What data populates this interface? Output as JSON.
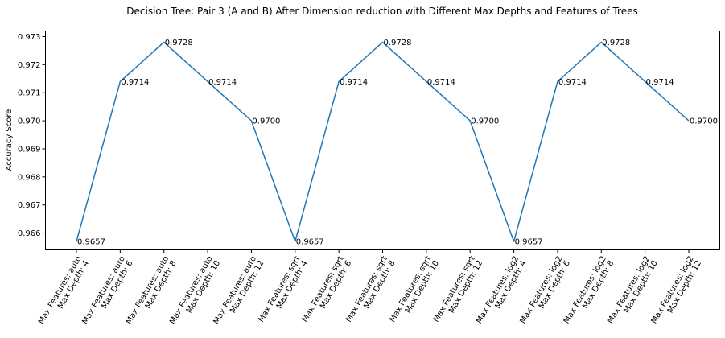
{
  "chart_data": {
    "type": "line",
    "title": "Decision Tree: Pair 3 (A and B) After Dimension reduction with Different Max Depths and Features of Trees",
    "xlabel": "",
    "ylabel": "Accuracy Score",
    "ylim": [
      0.9654,
      0.9732
    ],
    "yticks": [
      "0.966",
      "0.967",
      "0.968",
      "0.969",
      "0.970",
      "0.971",
      "0.972",
      "0.973"
    ],
    "grid": false,
    "line_color": "#1f77b4",
    "categories": [
      [
        "Max Features: auto",
        "Max Depth: 4"
      ],
      [
        "Max Features: auto",
        "Max Depth: 6"
      ],
      [
        "Max Features: auto",
        "Max Depth: 8"
      ],
      [
        "Max Features: auto",
        "Max Depth: 10"
      ],
      [
        "Max Features: auto",
        "Max Depth: 12"
      ],
      [
        "Max Features: sqrt",
        "Max Depth: 4"
      ],
      [
        "Max Features: sqrt",
        "Max Depth: 6"
      ],
      [
        "Max Features: sqrt",
        "Max Depth: 8"
      ],
      [
        "Max Features: sqrt",
        "Max Depth: 10"
      ],
      [
        "Max Features: sqrt",
        "Max Depth: 12"
      ],
      [
        "Max Features: log2",
        "Max Depth: 4"
      ],
      [
        "Max Features: log2",
        "Max Depth: 6"
      ],
      [
        "Max Features: log2",
        "Max Depth: 8"
      ],
      [
        "Max Features: log2",
        "Max Depth: 10"
      ],
      [
        "Max Features: log2",
        "Max Depth: 12"
      ]
    ],
    "values": [
      0.9657,
      0.9714,
      0.9728,
      0.9714,
      0.97,
      0.9657,
      0.9714,
      0.9728,
      0.9714,
      0.97,
      0.9657,
      0.9714,
      0.9728,
      0.9714,
      0.97
    ],
    "data_labels": [
      "0.9657",
      "0.9714",
      "0.9728",
      "0.9714",
      "0.9700",
      "0.9657",
      "0.9714",
      "0.9728",
      "0.9714",
      "0.9700",
      "0.9657",
      "0.9714",
      "0.9728",
      "0.9714",
      "0.9700"
    ]
  }
}
